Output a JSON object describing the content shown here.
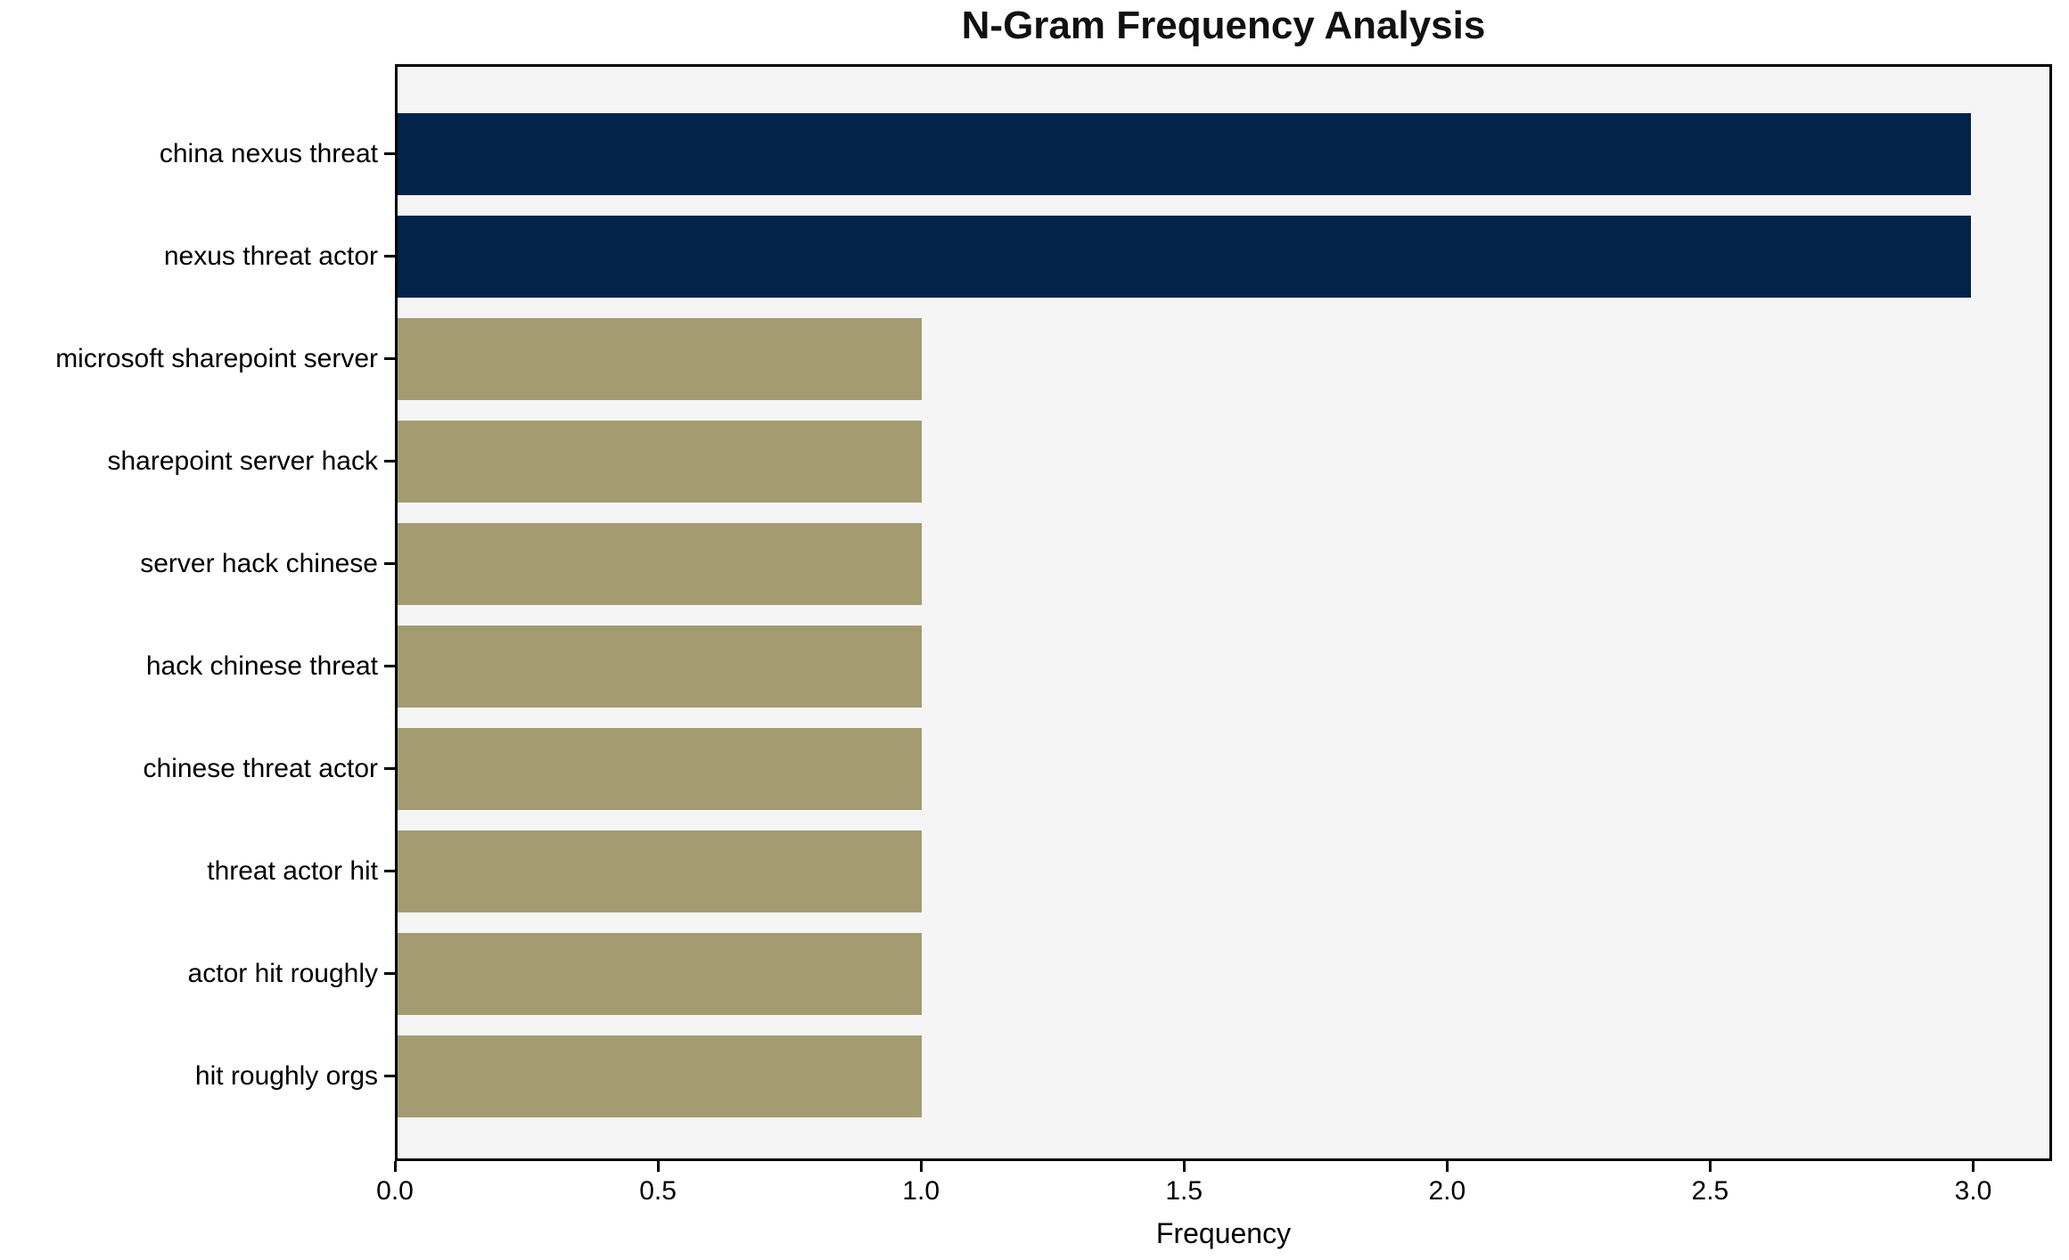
{
  "chart_data": {
    "type": "bar",
    "orientation": "horizontal",
    "title": "N-Gram Frequency Analysis",
    "xlabel": "Frequency",
    "ylabel": "",
    "categories": [
      "china nexus threat",
      "nexus threat actor",
      "microsoft sharepoint server",
      "sharepoint server hack",
      "server hack chinese",
      "hack chinese threat",
      "chinese threat actor",
      "threat actor hit",
      "actor hit roughly",
      "hit roughly orgs"
    ],
    "values": [
      3,
      3,
      1,
      1,
      1,
      1,
      1,
      1,
      1,
      1
    ],
    "bar_colors": [
      "#02234a",
      "#02234a",
      "#a49b70",
      "#a49b70",
      "#a49b70",
      "#a49b70",
      "#a49b70",
      "#a49b70",
      "#a49b70",
      "#a49b70"
    ],
    "xticks": [
      0.0,
      0.5,
      1.0,
      1.5,
      2.0,
      2.5,
      3.0
    ],
    "xtick_labels": [
      "0.0",
      "0.5",
      "1.0",
      "1.5",
      "2.0",
      "2.5",
      "3.0"
    ],
    "xlim": [
      0,
      3.15
    ],
    "grid": false,
    "legend": null,
    "colors": {
      "highlight_bar": "#02234a",
      "default_bar": "#a49b70",
      "plot_background": "#f5f5f5",
      "figure_background": "#ffffff",
      "spine": "#000000",
      "text": "#000000"
    }
  }
}
